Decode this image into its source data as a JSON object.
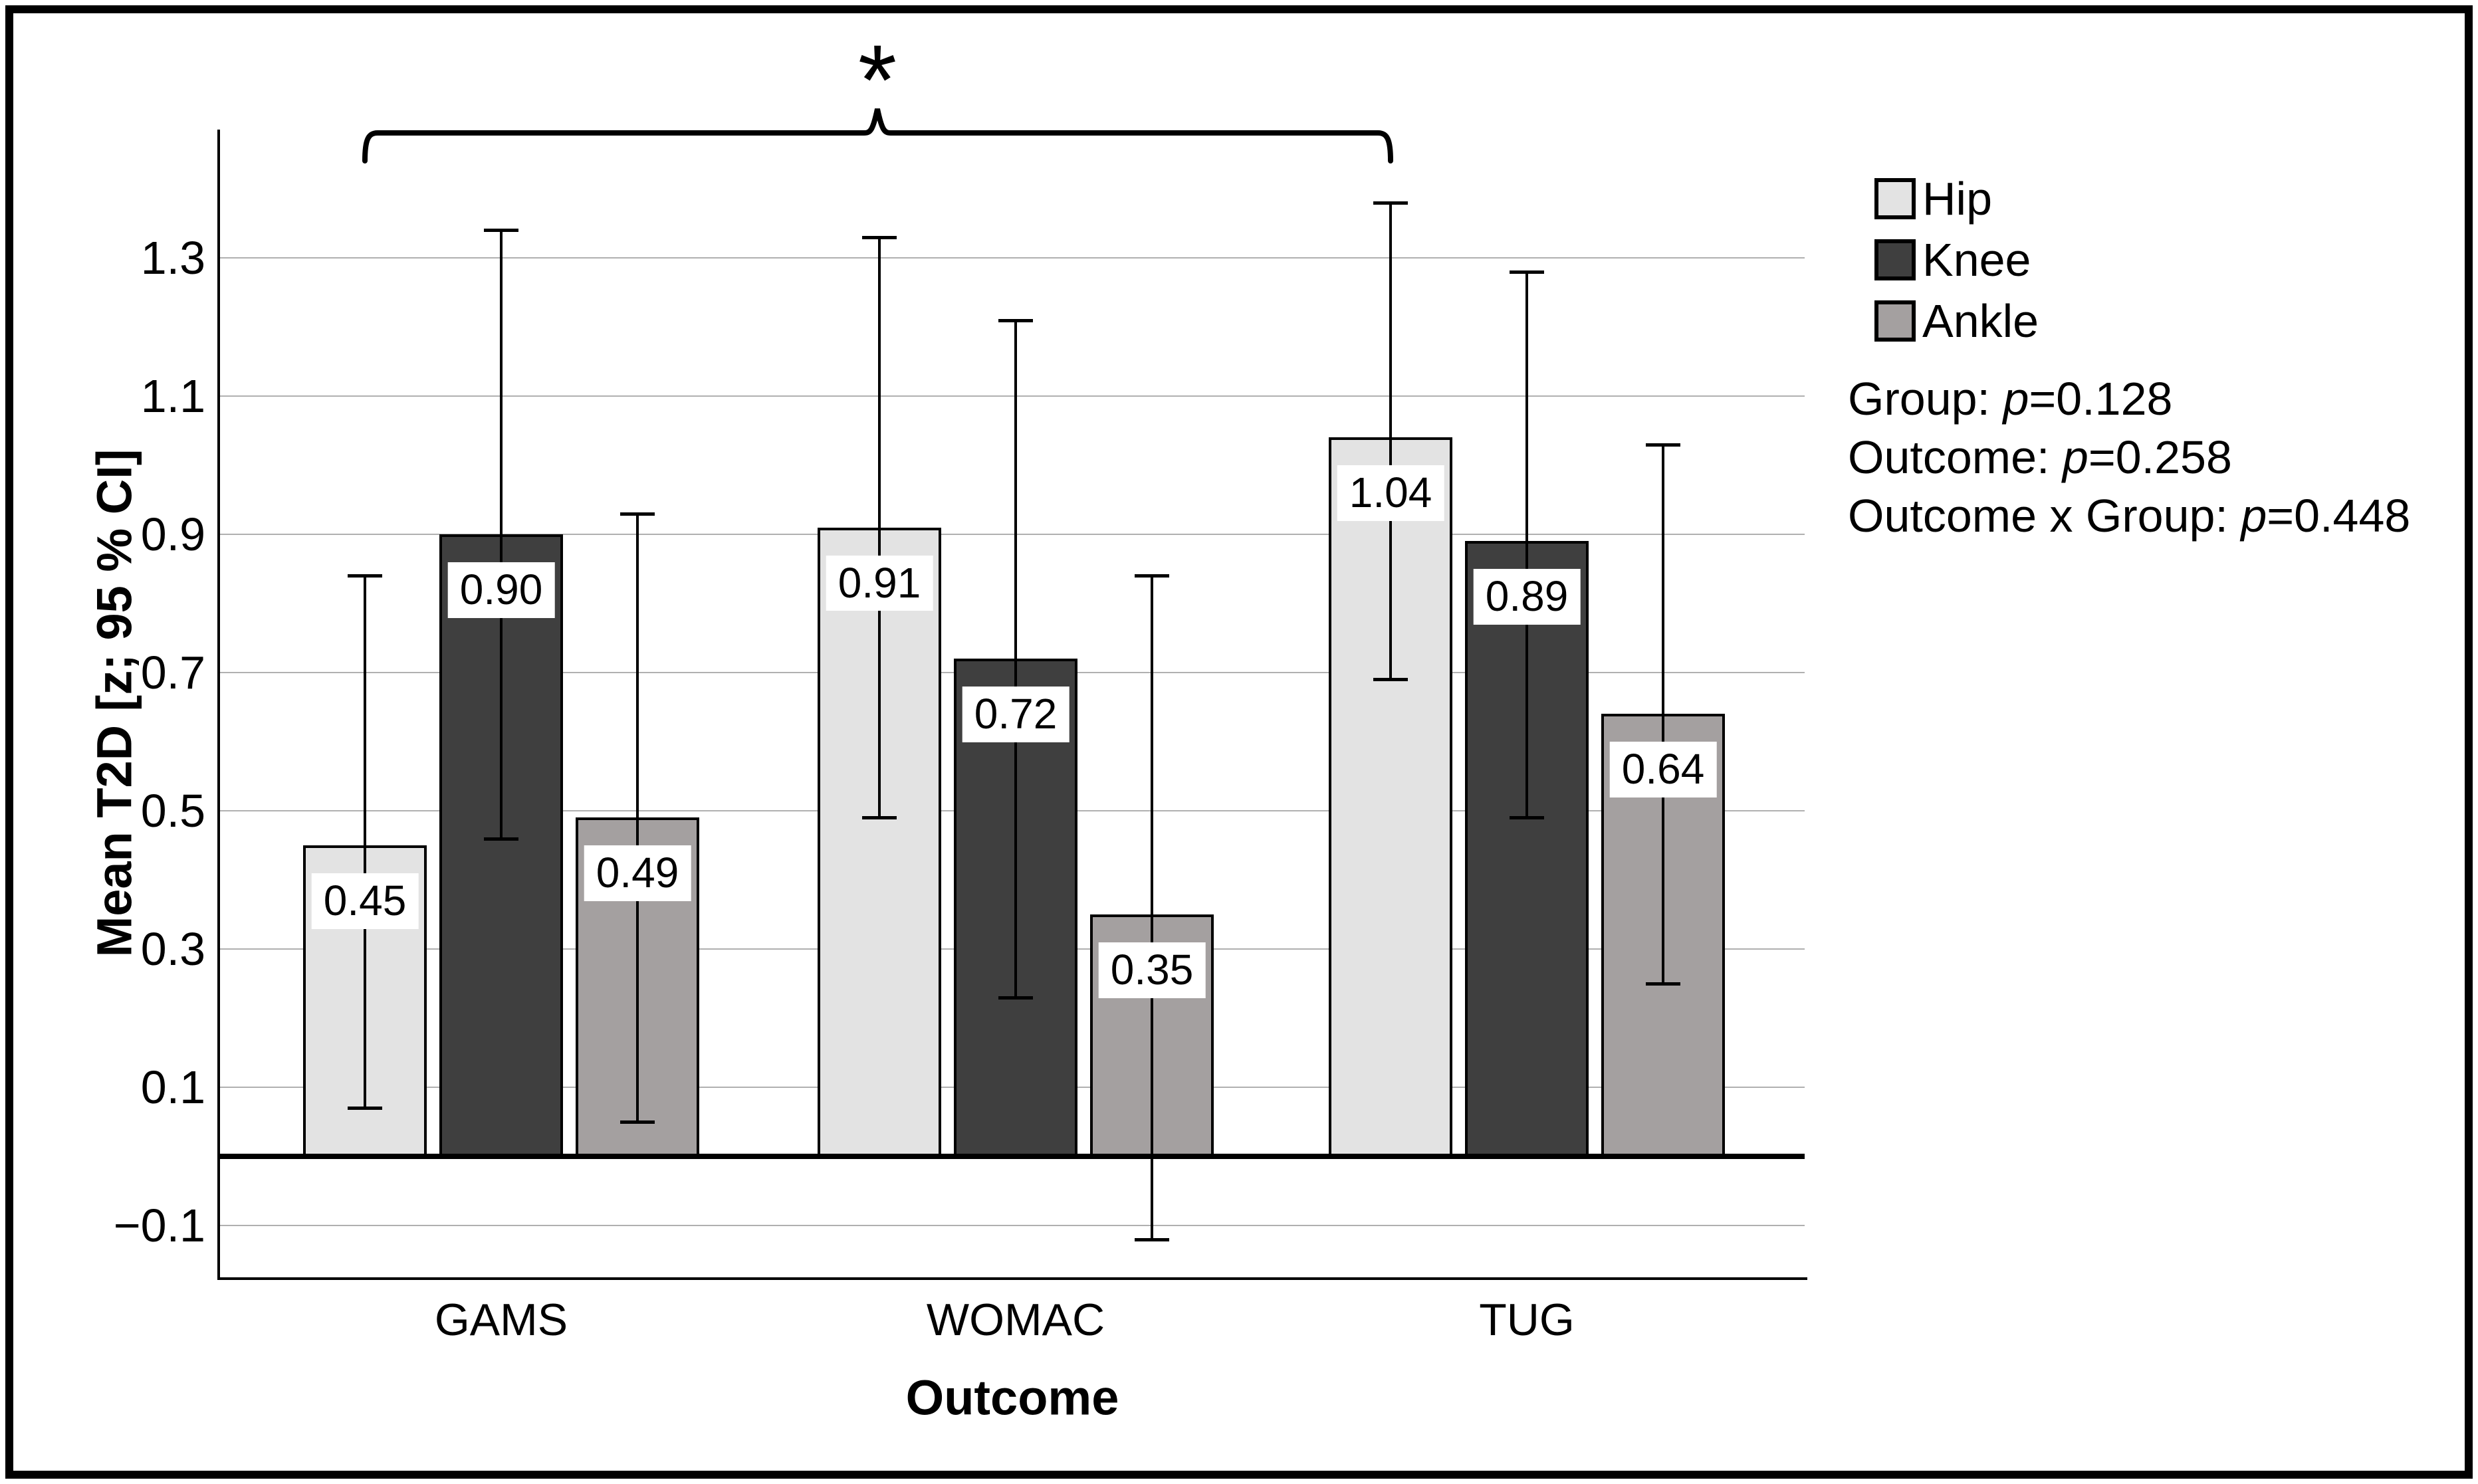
{
  "chart_data": {
    "type": "bar",
    "title": "",
    "categories": [
      "GAMS",
      "WOMAC",
      "TUG"
    ],
    "series": [
      {
        "name": "Hip",
        "color": "#e3e3e3",
        "values": [
          0.45,
          0.91,
          1.04
        ],
        "ci_low": [
          0.07,
          0.49,
          0.69
        ],
        "ci_high": [
          0.84,
          1.33,
          1.38
        ]
      },
      {
        "name": "Knee",
        "color": "#3f3f3f",
        "values": [
          0.9,
          0.72,
          0.89
        ],
        "ci_low": [
          0.46,
          0.23,
          0.49
        ],
        "ci_high": [
          1.34,
          1.21,
          1.28
        ]
      },
      {
        "name": "Ankle",
        "color": "#a4a0a0",
        "values": [
          0.49,
          0.35,
          0.64
        ],
        "ci_low": [
          0.05,
          -0.12,
          0.25
        ],
        "ci_high": [
          0.93,
          0.84,
          1.03
        ]
      }
    ],
    "xlabel": "Outcome",
    "ylabel": "Mean T2D [z; 95 % CI]",
    "yticks": [
      -0.1,
      0.1,
      0.3,
      0.5,
      0.7,
      0.9,
      1.1,
      1.3
    ],
    "ytick_labels": [
      "−0.1",
      "0.1",
      "0.3",
      "0.5",
      "0.7",
      "0.9",
      "1.1",
      "1.3"
    ],
    "ylim": [
      -0.175,
      1.486
    ],
    "grid": true,
    "legend_position": "right",
    "error_bars": "95 % CI",
    "significance": {
      "symbol": "*",
      "from": "GAMS",
      "to": "TUG"
    }
  },
  "legend": {
    "items": [
      {
        "label": "Hip",
        "color": "#e3e3e3"
      },
      {
        "label": "Knee",
        "color": "#3f3f3f"
      },
      {
        "label": "Ankle",
        "color": "#a4a0a0"
      }
    ]
  },
  "stats": [
    {
      "prefix": "Group: ",
      "p_symbol": "p",
      "rest": "=0.128"
    },
    {
      "prefix": "Outcome: ",
      "p_symbol": "p",
      "rest": "=0.258"
    },
    {
      "prefix": "Outcome x Group: ",
      "p_symbol": "p",
      "rest": "=0.448"
    }
  ],
  "colors": {
    "gridline": "#b0b0b0",
    "axis": "#000000",
    "label_box_bg": "#ffffff",
    "text": "#000000"
  }
}
